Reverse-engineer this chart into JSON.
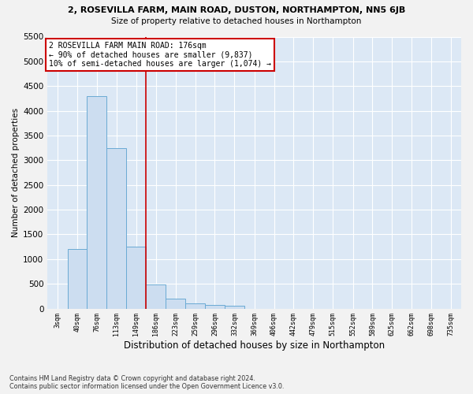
{
  "title1": "2, ROSEVILLA FARM, MAIN ROAD, DUSTON, NORTHAMPTON, NN5 6JB",
  "title2": "Size of property relative to detached houses in Northampton",
  "xlabel": "Distribution of detached houses by size in Northampton",
  "ylabel": "Number of detached properties",
  "footnote1": "Contains HM Land Registry data © Crown copyright and database right 2024.",
  "footnote2": "Contains public sector information licensed under the Open Government Licence v3.0.",
  "annotation_line1": "2 ROSEVILLA FARM MAIN ROAD: 176sqm",
  "annotation_line2": "← 90% of detached houses are smaller (9,837)",
  "annotation_line3": "10% of semi-detached houses are larger (1,074) →",
  "bar_color": "#ccddf0",
  "bar_edge_color": "#6aaad4",
  "vline_color": "#cc0000",
  "annotation_box_color": "#cc0000",
  "background_color": "#dce8f5",
  "grid_color": "#ffffff",
  "fig_background": "#f2f2f2",
  "categories": [
    "3sqm",
    "40sqm",
    "76sqm",
    "113sqm",
    "149sqm",
    "186sqm",
    "223sqm",
    "259sqm",
    "296sqm",
    "332sqm",
    "369sqm",
    "406sqm",
    "442sqm",
    "479sqm",
    "515sqm",
    "552sqm",
    "589sqm",
    "625sqm",
    "662sqm",
    "698sqm",
    "735sqm"
  ],
  "bar_left_edges": [
    3,
    40,
    76,
    113,
    149,
    186,
    223,
    259,
    296,
    332,
    369,
    406,
    442,
    479,
    515,
    552,
    589,
    625,
    662,
    698,
    735
  ],
  "bar_widths": [
    37,
    36,
    37,
    36,
    37,
    37,
    36,
    37,
    36,
    37,
    37,
    36,
    37,
    36,
    37,
    37,
    36,
    37,
    36,
    37,
    37
  ],
  "bar_heights": [
    0,
    1200,
    4300,
    3250,
    1250,
    490,
    200,
    100,
    75,
    55,
    0,
    0,
    0,
    0,
    0,
    0,
    0,
    0,
    0,
    0,
    0
  ],
  "ylim": [
    0,
    5500
  ],
  "yticks": [
    0,
    500,
    1000,
    1500,
    2000,
    2500,
    3000,
    3500,
    4000,
    4500,
    5000,
    5500
  ],
  "vline_x": 186,
  "xlim_left": 3,
  "xlim_right": 772
}
